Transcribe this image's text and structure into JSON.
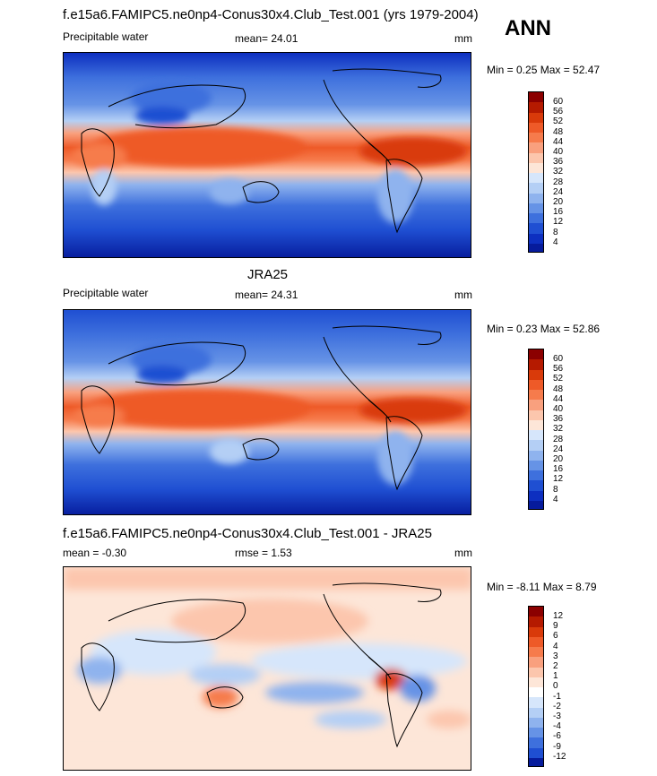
{
  "page": {
    "season": "ANN",
    "top_title": "f.e15a6.FAMIPC5.ne0np4-Conus30x4.Club_Test.001 (yrs 1979-2004)",
    "mid_title": "JRA25",
    "diff_title": "f.e15a6.FAMIPC5.ne0np4-Conus30x4.Club_Test.001 - JRA25"
  },
  "panels": [
    {
      "variable": "Precipitable water",
      "mean_text": "mean=  24.01",
      "units": "mm",
      "minmax_text": "Min =   0.25 Max =  52.47",
      "colorbar_labels": [
        "60",
        "56",
        "52",
        "48",
        "44",
        "40",
        "36",
        "32",
        "28",
        "24",
        "20",
        "16",
        "12",
        "8",
        "4"
      ]
    },
    {
      "variable": "Precipitable water",
      "mean_text": "mean=  24.31",
      "units": "mm",
      "minmax_text": "Min =   0.23 Max =  52.86",
      "colorbar_labels": [
        "60",
        "56",
        "52",
        "48",
        "44",
        "40",
        "36",
        "32",
        "28",
        "24",
        "20",
        "16",
        "12",
        "8",
        "4"
      ]
    },
    {
      "mean_text": "mean =  -0.30",
      "rmse_text": "rmse =   1.53",
      "units": "mm",
      "minmax_text": "Min =  -8.11 Max =   8.79",
      "colorbar_labels": [
        "12",
        "9",
        "6",
        "4",
        "3",
        "2",
        "1",
        "0",
        "-1",
        "-2",
        "-3",
        "-4",
        "-6",
        "-9",
        "-12"
      ]
    }
  ],
  "colors": {
    "abs_scale": [
      "#8b0000",
      "#b51a00",
      "#d93a0a",
      "#ee5a28",
      "#f67b4c",
      "#f9a07e",
      "#fcc6ad",
      "#fde6d8",
      "#d6e6fb",
      "#b4cff5",
      "#8fb3ee",
      "#6693e6",
      "#3e70dd",
      "#1f4fd2",
      "#0d2fc0",
      "#061b9c"
    ],
    "diff_scale": [
      "#8b0000",
      "#b51a00",
      "#d93a0a",
      "#ee5a28",
      "#f67b4c",
      "#f9a07e",
      "#fcc6ad",
      "#fde6d8",
      "#ffffff",
      "#d6e6fb",
      "#b4cff5",
      "#8fb3ee",
      "#6693e6",
      "#3e70dd",
      "#1f4fd2",
      "#061b9c"
    ]
  }
}
